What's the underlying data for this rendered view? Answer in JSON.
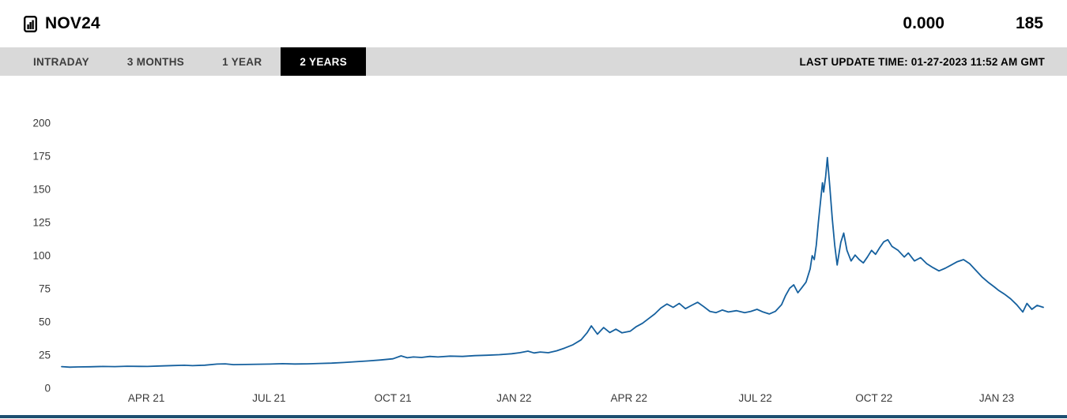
{
  "header": {
    "symbol": "NOV24",
    "value_left": "0.000",
    "value_right": "185"
  },
  "tabs": {
    "items": [
      {
        "label": "INTRADAY",
        "active": false
      },
      {
        "label": "3 MONTHS",
        "active": false
      },
      {
        "label": "1 YEAR",
        "active": false
      },
      {
        "label": "2 YEARS",
        "active": true
      }
    ],
    "last_update": "LAST UPDATE TIME: 01-27-2023 11:52 AM GMT"
  },
  "colors": {
    "line": "#15609e",
    "tabbar_bg": "#d9d9d9",
    "tab_active_bg": "#000000",
    "tab_active_text": "#ffffff",
    "tick_text": "#3a3a3a",
    "bottom_bar": "#1d4f71"
  },
  "chart_data": {
    "type": "line",
    "title": "NOV24 price history, 2 years",
    "xlabel": "",
    "ylabel": "",
    "x_unit": "months since late Jan 2021",
    "x_range": [
      0,
      24
    ],
    "ylim": [
      0,
      200
    ],
    "grid": false,
    "legend": "none",
    "line_color": "#15609e",
    "y_ticks": [
      0,
      25,
      50,
      75,
      100,
      125,
      150,
      175,
      200
    ],
    "x_ticks": [
      {
        "t": 2.07,
        "label": "APR 21"
      },
      {
        "t": 5.07,
        "label": "JUL 21"
      },
      {
        "t": 8.1,
        "label": "OCT 21"
      },
      {
        "t": 11.06,
        "label": "JAN 22"
      },
      {
        "t": 13.87,
        "label": "APR 22"
      },
      {
        "t": 16.96,
        "label": "JUL 22"
      },
      {
        "t": 19.86,
        "label": "OCT 22"
      },
      {
        "t": 22.86,
        "label": "JAN 23"
      }
    ],
    "points": [
      [
        0.0,
        16.3
      ],
      [
        0.2,
        15.9
      ],
      [
        0.4,
        16.1
      ],
      [
        0.7,
        16.2
      ],
      [
        1.0,
        16.4
      ],
      [
        1.3,
        16.3
      ],
      [
        1.6,
        16.6
      ],
      [
        1.9,
        16.5
      ],
      [
        2.1,
        16.4
      ],
      [
        2.4,
        16.8
      ],
      [
        2.7,
        17.1
      ],
      [
        3.0,
        17.3
      ],
      [
        3.2,
        17.0
      ],
      [
        3.5,
        17.4
      ],
      [
        3.8,
        18.2
      ],
      [
        4.0,
        18.4
      ],
      [
        4.2,
        17.8
      ],
      [
        4.5,
        17.9
      ],
      [
        4.8,
        18.1
      ],
      [
        5.1,
        18.2
      ],
      [
        5.4,
        18.5
      ],
      [
        5.7,
        18.3
      ],
      [
        6.0,
        18.4
      ],
      [
        6.3,
        18.7
      ],
      [
        6.6,
        18.9
      ],
      [
        6.9,
        19.4
      ],
      [
        7.2,
        20.0
      ],
      [
        7.5,
        20.6
      ],
      [
        7.8,
        21.3
      ],
      [
        8.1,
        22.2
      ],
      [
        8.3,
        24.4
      ],
      [
        8.45,
        23.0
      ],
      [
        8.6,
        23.6
      ],
      [
        8.8,
        23.2
      ],
      [
        9.0,
        24.0
      ],
      [
        9.2,
        23.6
      ],
      [
        9.5,
        24.2
      ],
      [
        9.8,
        24.0
      ],
      [
        10.1,
        24.6
      ],
      [
        10.4,
        24.9
      ],
      [
        10.7,
        25.3
      ],
      [
        11.0,
        26.0
      ],
      [
        11.2,
        26.8
      ],
      [
        11.4,
        28.0
      ],
      [
        11.55,
        26.6
      ],
      [
        11.7,
        27.3
      ],
      [
        11.9,
        26.8
      ],
      [
        12.1,
        28.2
      ],
      [
        12.3,
        30.3
      ],
      [
        12.5,
        32.8
      ],
      [
        12.7,
        36.5
      ],
      [
        12.85,
        42.0
      ],
      [
        12.95,
        47.0
      ],
      [
        13.1,
        40.8
      ],
      [
        13.25,
        45.8
      ],
      [
        13.4,
        42.0
      ],
      [
        13.55,
        44.5
      ],
      [
        13.7,
        41.8
      ],
      [
        13.9,
        43.0
      ],
      [
        14.05,
        46.5
      ],
      [
        14.2,
        49.0
      ],
      [
        14.35,
        52.5
      ],
      [
        14.5,
        56.0
      ],
      [
        14.65,
        60.5
      ],
      [
        14.8,
        63.5
      ],
      [
        14.95,
        61.0
      ],
      [
        15.1,
        64.0
      ],
      [
        15.25,
        60.0
      ],
      [
        15.4,
        62.5
      ],
      [
        15.55,
        64.8
      ],
      [
        15.7,
        61.5
      ],
      [
        15.85,
        58.0
      ],
      [
        16.0,
        57.0
      ],
      [
        16.15,
        59.0
      ],
      [
        16.3,
        57.5
      ],
      [
        16.5,
        58.5
      ],
      [
        16.7,
        57.0
      ],
      [
        16.85,
        58.0
      ],
      [
        17.0,
        59.5
      ],
      [
        17.15,
        57.5
      ],
      [
        17.3,
        56.0
      ],
      [
        17.45,
        58.0
      ],
      [
        17.6,
        63.0
      ],
      [
        17.7,
        70.0
      ],
      [
        17.8,
        75.5
      ],
      [
        17.9,
        78.0
      ],
      [
        18.0,
        72.0
      ],
      [
        18.1,
        76.0
      ],
      [
        18.2,
        80.0
      ],
      [
        18.3,
        90.0
      ],
      [
        18.35,
        100.0
      ],
      [
        18.4,
        97.0
      ],
      [
        18.45,
        108.0
      ],
      [
        18.5,
        125.0
      ],
      [
        18.55,
        140.0
      ],
      [
        18.6,
        155.0
      ],
      [
        18.63,
        148.0
      ],
      [
        18.68,
        160.0
      ],
      [
        18.72,
        174.0
      ],
      [
        18.78,
        152.0
      ],
      [
        18.84,
        128.0
      ],
      [
        18.9,
        108.0
      ],
      [
        18.96,
        93.0
      ],
      [
        19.05,
        110.0
      ],
      [
        19.12,
        117.0
      ],
      [
        19.2,
        104.0
      ],
      [
        19.3,
        96.0
      ],
      [
        19.4,
        100.5
      ],
      [
        19.5,
        97.0
      ],
      [
        19.6,
        94.5
      ],
      [
        19.7,
        99.0
      ],
      [
        19.8,
        104.0
      ],
      [
        19.9,
        101.0
      ],
      [
        20.0,
        106.0
      ],
      [
        20.1,
        110.5
      ],
      [
        20.2,
        112.0
      ],
      [
        20.3,
        107.0
      ],
      [
        20.45,
        104.0
      ],
      [
        20.6,
        99.0
      ],
      [
        20.7,
        102.0
      ],
      [
        20.85,
        96.0
      ],
      [
        21.0,
        98.5
      ],
      [
        21.15,
        94.0
      ],
      [
        21.3,
        91.0
      ],
      [
        21.45,
        88.5
      ],
      [
        21.6,
        90.5
      ],
      [
        21.75,
        93.0
      ],
      [
        21.9,
        95.5
      ],
      [
        22.05,
        97.0
      ],
      [
        22.2,
        94.0
      ],
      [
        22.35,
        89.0
      ],
      [
        22.5,
        84.0
      ],
      [
        22.65,
        80.0
      ],
      [
        22.8,
        76.5
      ],
      [
        22.9,
        74.0
      ],
      [
        23.05,
        71.0
      ],
      [
        23.2,
        67.5
      ],
      [
        23.35,
        63.0
      ],
      [
        23.5,
        57.5
      ],
      [
        23.6,
        64.0
      ],
      [
        23.72,
        59.5
      ],
      [
        23.85,
        62.5
      ],
      [
        24.0,
        61.0
      ]
    ]
  }
}
